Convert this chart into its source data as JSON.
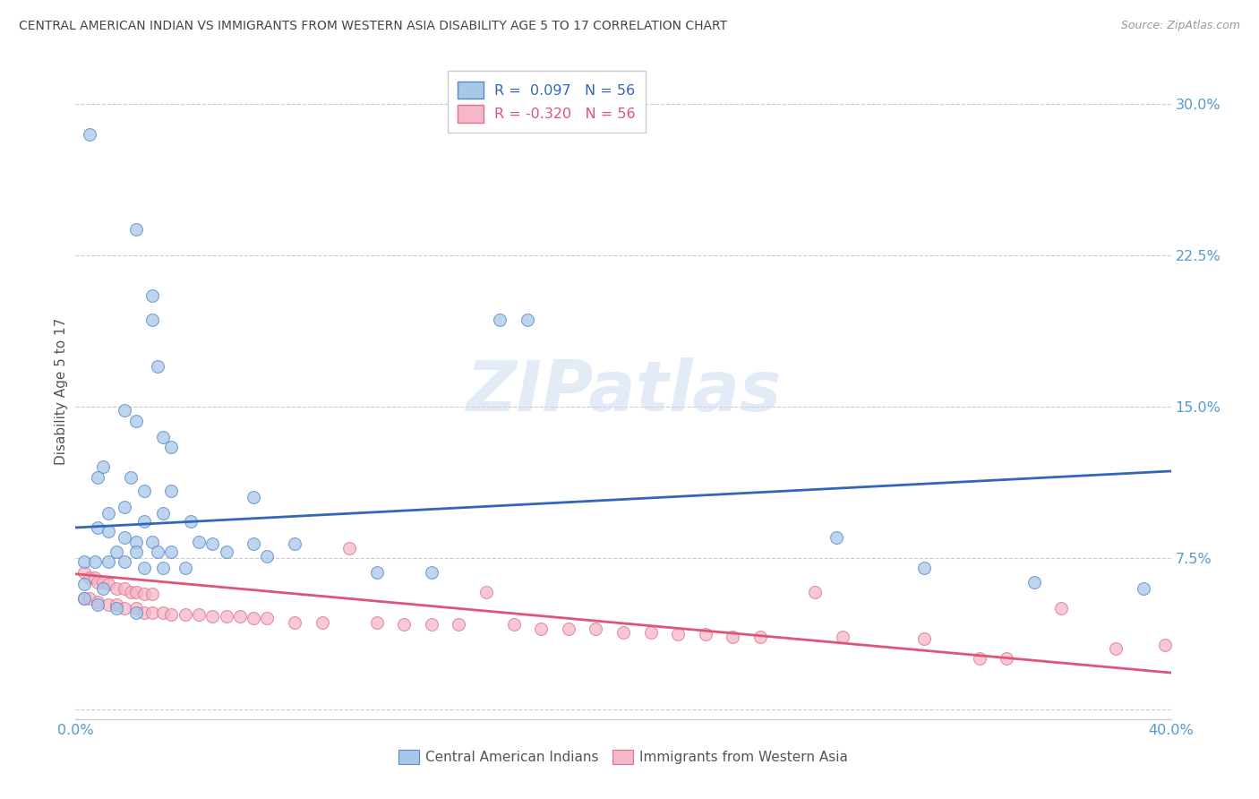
{
  "title": "CENTRAL AMERICAN INDIAN VS IMMIGRANTS FROM WESTERN ASIA DISABILITY AGE 5 TO 17 CORRELATION CHART",
  "source": "Source: ZipAtlas.com",
  "ylabel": "Disability Age 5 to 17",
  "xlim": [
    0.0,
    0.4
  ],
  "ylim": [
    -0.005,
    0.32
  ],
  "r_blue": 0.097,
  "r_pink": -0.32,
  "n_blue": 56,
  "n_pink": 56,
  "legend_label_blue": "Central American Indians",
  "legend_label_pink": "Immigrants from Western Asia",
  "blue_color": "#a8c8e8",
  "pink_color": "#f4b8c8",
  "blue_edge_color": "#5588cc",
  "pink_edge_color": "#e07090",
  "blue_line_color": "#3366bb",
  "pink_line_color": "#dd5577",
  "background_color": "#ffffff",
  "grid_color": "#cccccc",
  "title_color": "#444444",
  "axis_tick_color": "#5599cc",
  "ytick_vals": [
    0.0,
    0.075,
    0.15,
    0.225,
    0.3
  ],
  "ytick_labels": [
    "",
    "7.5%",
    "15.0%",
    "22.5%",
    "30.0%"
  ],
  "blue_line_y0": 0.09,
  "blue_line_y1": 0.118,
  "pink_line_y0": 0.067,
  "pink_line_y1": 0.018,
  "blue_scatter": [
    [
      0.005,
      0.285
    ],
    [
      0.022,
      0.238
    ],
    [
      0.028,
      0.205
    ],
    [
      0.028,
      0.193
    ],
    [
      0.03,
      0.17
    ],
    [
      0.018,
      0.148
    ],
    [
      0.022,
      0.143
    ],
    [
      0.032,
      0.135
    ],
    [
      0.035,
      0.13
    ],
    [
      0.01,
      0.12
    ],
    [
      0.008,
      0.115
    ],
    [
      0.02,
      0.115
    ],
    [
      0.025,
      0.108
    ],
    [
      0.035,
      0.108
    ],
    [
      0.065,
      0.105
    ],
    [
      0.018,
      0.1
    ],
    [
      0.012,
      0.097
    ],
    [
      0.032,
      0.097
    ],
    [
      0.025,
      0.093
    ],
    [
      0.042,
      0.093
    ],
    [
      0.155,
      0.193
    ],
    [
      0.165,
      0.193
    ],
    [
      0.008,
      0.09
    ],
    [
      0.012,
      0.088
    ],
    [
      0.018,
      0.085
    ],
    [
      0.022,
      0.083
    ],
    [
      0.028,
      0.083
    ],
    [
      0.045,
      0.083
    ],
    [
      0.05,
      0.082
    ],
    [
      0.065,
      0.082
    ],
    [
      0.08,
      0.082
    ],
    [
      0.015,
      0.078
    ],
    [
      0.022,
      0.078
    ],
    [
      0.03,
      0.078
    ],
    [
      0.035,
      0.078
    ],
    [
      0.055,
      0.078
    ],
    [
      0.07,
      0.076
    ],
    [
      0.003,
      0.073
    ],
    [
      0.007,
      0.073
    ],
    [
      0.012,
      0.073
    ],
    [
      0.018,
      0.073
    ],
    [
      0.025,
      0.07
    ],
    [
      0.032,
      0.07
    ],
    [
      0.04,
      0.07
    ],
    [
      0.11,
      0.068
    ],
    [
      0.13,
      0.068
    ],
    [
      0.003,
      0.062
    ],
    [
      0.01,
      0.06
    ],
    [
      0.278,
      0.085
    ],
    [
      0.31,
      0.07
    ],
    [
      0.35,
      0.063
    ],
    [
      0.39,
      0.06
    ],
    [
      0.003,
      0.055
    ],
    [
      0.008,
      0.052
    ],
    [
      0.015,
      0.05
    ],
    [
      0.022,
      0.048
    ]
  ],
  "pink_scatter": [
    [
      0.003,
      0.068
    ],
    [
      0.005,
      0.065
    ],
    [
      0.007,
      0.065
    ],
    [
      0.008,
      0.063
    ],
    [
      0.01,
      0.063
    ],
    [
      0.012,
      0.062
    ],
    [
      0.015,
      0.06
    ],
    [
      0.018,
      0.06
    ],
    [
      0.02,
      0.058
    ],
    [
      0.022,
      0.058
    ],
    [
      0.025,
      0.057
    ],
    [
      0.028,
      0.057
    ],
    [
      0.003,
      0.055
    ],
    [
      0.005,
      0.055
    ],
    [
      0.008,
      0.053
    ],
    [
      0.012,
      0.052
    ],
    [
      0.015,
      0.052
    ],
    [
      0.018,
      0.05
    ],
    [
      0.022,
      0.05
    ],
    [
      0.025,
      0.048
    ],
    [
      0.028,
      0.048
    ],
    [
      0.032,
      0.048
    ],
    [
      0.035,
      0.047
    ],
    [
      0.04,
      0.047
    ],
    [
      0.045,
      0.047
    ],
    [
      0.05,
      0.046
    ],
    [
      0.055,
      0.046
    ],
    [
      0.06,
      0.046
    ],
    [
      0.065,
      0.045
    ],
    [
      0.07,
      0.045
    ],
    [
      0.08,
      0.043
    ],
    [
      0.09,
      0.043
    ],
    [
      0.1,
      0.08
    ],
    [
      0.11,
      0.043
    ],
    [
      0.12,
      0.042
    ],
    [
      0.13,
      0.042
    ],
    [
      0.14,
      0.042
    ],
    [
      0.15,
      0.058
    ],
    [
      0.16,
      0.042
    ],
    [
      0.17,
      0.04
    ],
    [
      0.18,
      0.04
    ],
    [
      0.19,
      0.04
    ],
    [
      0.2,
      0.038
    ],
    [
      0.21,
      0.038
    ],
    [
      0.22,
      0.037
    ],
    [
      0.23,
      0.037
    ],
    [
      0.24,
      0.036
    ],
    [
      0.25,
      0.036
    ],
    [
      0.27,
      0.058
    ],
    [
      0.28,
      0.036
    ],
    [
      0.31,
      0.035
    ],
    [
      0.33,
      0.025
    ],
    [
      0.34,
      0.025
    ],
    [
      0.36,
      0.05
    ],
    [
      0.38,
      0.03
    ],
    [
      0.398,
      0.032
    ]
  ]
}
